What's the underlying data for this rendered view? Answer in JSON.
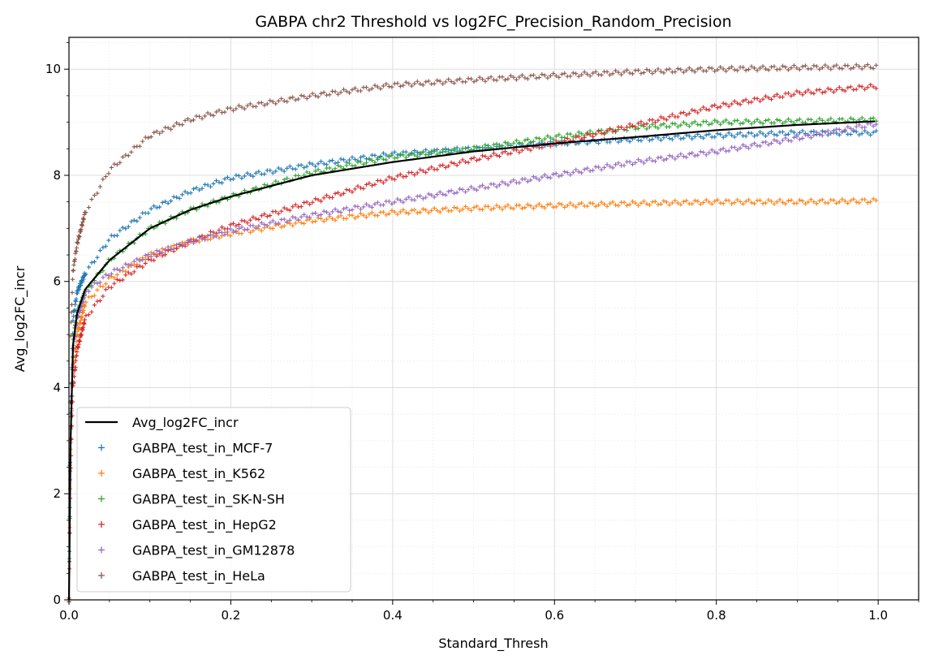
{
  "chart_data": {
    "type": "scatter",
    "title": "GABPA chr2 Threshold vs log2FC_Precision_Random_Precision",
    "xlabel": "Standard_Thresh",
    "ylabel": "Avg_log2FC_incr",
    "xlim": [
      0.0,
      1.05
    ],
    "ylim": [
      0,
      10.6
    ],
    "xticks": [
      "0.0",
      "0.2",
      "0.4",
      "0.6",
      "0.8",
      "1.0"
    ],
    "yticks": [
      "0",
      "2",
      "4",
      "6",
      "8",
      "10"
    ],
    "grid": true,
    "legend_position": "lower-left",
    "avg_line": {
      "name": "Avg_log2FC_incr",
      "color": "#000000",
      "points": [
        [
          0.0,
          0.0
        ],
        [
          0.002,
          3.0
        ],
        [
          0.005,
          4.8
        ],
        [
          0.01,
          5.4
        ],
        [
          0.02,
          5.85
        ],
        [
          0.05,
          6.4
        ],
        [
          0.1,
          7.0
        ],
        [
          0.15,
          7.35
        ],
        [
          0.2,
          7.6
        ],
        [
          0.3,
          8.0
        ],
        [
          0.4,
          8.25
        ],
        [
          0.5,
          8.45
        ],
        [
          0.6,
          8.6
        ],
        [
          0.7,
          8.72
        ],
        [
          0.8,
          8.85
        ],
        [
          0.9,
          8.95
        ],
        [
          1.0,
          9.02
        ]
      ]
    },
    "series": [
      {
        "name": "GABPA_test_in_MCF-7",
        "color": "#1f77b4",
        "points": [
          [
            0.0,
            0.0
          ],
          [
            0.002,
            3.5
          ],
          [
            0.005,
            5.3
          ],
          [
            0.01,
            5.8
          ],
          [
            0.02,
            6.15
          ],
          [
            0.05,
            6.8
          ],
          [
            0.1,
            7.35
          ],
          [
            0.15,
            7.7
          ],
          [
            0.2,
            7.95
          ],
          [
            0.3,
            8.2
          ],
          [
            0.4,
            8.4
          ],
          [
            0.5,
            8.5
          ],
          [
            0.6,
            8.6
          ],
          [
            0.7,
            8.68
          ],
          [
            0.8,
            8.75
          ],
          [
            0.9,
            8.8
          ],
          [
            1.0,
            8.8
          ]
        ]
      },
      {
        "name": "GABPA_test_in_K562",
        "color": "#ff7f0e",
        "points": [
          [
            0.0,
            0.0
          ],
          [
            0.002,
            2.8
          ],
          [
            0.005,
            4.3
          ],
          [
            0.01,
            5.0
          ],
          [
            0.02,
            5.6
          ],
          [
            0.05,
            6.05
          ],
          [
            0.1,
            6.5
          ],
          [
            0.15,
            6.75
          ],
          [
            0.2,
            6.9
          ],
          [
            0.3,
            7.15
          ],
          [
            0.4,
            7.3
          ],
          [
            0.5,
            7.38
          ],
          [
            0.6,
            7.43
          ],
          [
            0.7,
            7.47
          ],
          [
            0.8,
            7.5
          ],
          [
            0.9,
            7.5
          ],
          [
            1.0,
            7.52
          ]
        ]
      },
      {
        "name": "GABPA_test_in_SK-N-SH",
        "color": "#2ca02c",
        "points": [
          [
            0.0,
            0.0
          ],
          [
            0.002,
            3.2
          ],
          [
            0.005,
            4.9
          ],
          [
            0.01,
            5.4
          ],
          [
            0.02,
            5.8
          ],
          [
            0.05,
            6.4
          ],
          [
            0.1,
            7.0
          ],
          [
            0.15,
            7.35
          ],
          [
            0.2,
            7.6
          ],
          [
            0.3,
            8.05
          ],
          [
            0.4,
            8.35
          ],
          [
            0.5,
            8.5
          ],
          [
            0.6,
            8.72
          ],
          [
            0.7,
            8.9
          ],
          [
            0.8,
            9.0
          ],
          [
            0.9,
            9.02
          ],
          [
            1.0,
            9.05
          ]
        ]
      },
      {
        "name": "GABPA_test_in_HepG2",
        "color": "#d62728",
        "points": [
          [
            0.0,
            0.0
          ],
          [
            0.002,
            2.5
          ],
          [
            0.005,
            4.0
          ],
          [
            0.01,
            4.7
          ],
          [
            0.02,
            5.3
          ],
          [
            0.05,
            5.9
          ],
          [
            0.1,
            6.4
          ],
          [
            0.15,
            6.75
          ],
          [
            0.2,
            7.05
          ],
          [
            0.3,
            7.5
          ],
          [
            0.4,
            7.95
          ],
          [
            0.5,
            8.3
          ],
          [
            0.6,
            8.6
          ],
          [
            0.7,
            8.95
          ],
          [
            0.8,
            9.3
          ],
          [
            0.9,
            9.55
          ],
          [
            1.0,
            9.68
          ]
        ]
      },
      {
        "name": "GABPA_test_in_GM12878",
        "color": "#9467bd",
        "points": [
          [
            0.0,
            0.0
          ],
          [
            0.002,
            3.0
          ],
          [
            0.005,
            4.7
          ],
          [
            0.01,
            5.3
          ],
          [
            0.02,
            5.8
          ],
          [
            0.05,
            6.15
          ],
          [
            0.1,
            6.5
          ],
          [
            0.15,
            6.75
          ],
          [
            0.2,
            6.95
          ],
          [
            0.3,
            7.25
          ],
          [
            0.4,
            7.5
          ],
          [
            0.5,
            7.75
          ],
          [
            0.6,
            8.0
          ],
          [
            0.7,
            8.25
          ],
          [
            0.8,
            8.45
          ],
          [
            0.9,
            8.7
          ],
          [
            1.0,
            8.98
          ]
        ]
      },
      {
        "name": "GABPA_test_in_HeLa",
        "color": "#8c564b",
        "points": [
          [
            0.0,
            0.0
          ],
          [
            0.002,
            5.0
          ],
          [
            0.005,
            6.2
          ],
          [
            0.01,
            6.7
          ],
          [
            0.02,
            7.3
          ],
          [
            0.05,
            8.1
          ],
          [
            0.1,
            8.75
          ],
          [
            0.15,
            9.05
          ],
          [
            0.2,
            9.25
          ],
          [
            0.3,
            9.5
          ],
          [
            0.4,
            9.7
          ],
          [
            0.5,
            9.8
          ],
          [
            0.6,
            9.88
          ],
          [
            0.7,
            9.95
          ],
          [
            0.8,
            10.0
          ],
          [
            0.9,
            10.03
          ],
          [
            1.0,
            10.05
          ]
        ]
      }
    ]
  }
}
